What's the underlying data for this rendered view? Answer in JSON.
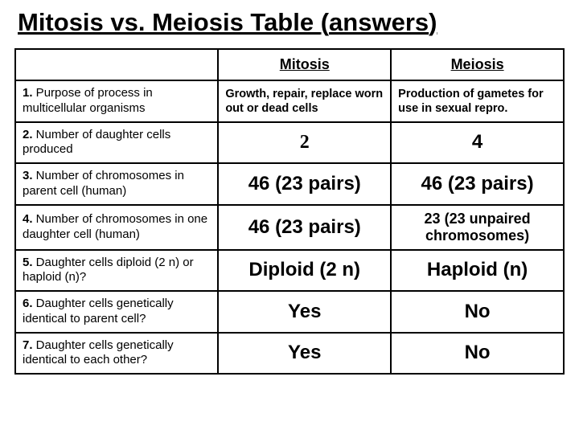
{
  "title": {
    "part1": "Mitosis vs. Meiosis Table ",
    "paren_open": "(",
    "answers": "answers",
    "paren_close": ")"
  },
  "headers": {
    "col1": "",
    "col2": "Mitosis",
    "col3": "Meiosis"
  },
  "rows": [
    {
      "label_bold": "1.",
      "label_rest": " Purpose of process in multicellular organisms",
      "mitosis": "Growth, repair, replace worn out or dead cells",
      "meiosis": "Production of gametes for use in sexual repro.",
      "style": "small"
    },
    {
      "label_bold": "2.",
      "label_rest": " Number of daughter cells produced",
      "mitosis": "2",
      "meiosis": "4",
      "style": "big",
      "mitosis_serif": true
    },
    {
      "label_bold": "3.",
      "label_rest": " Number of chromosomes in parent cell (human)",
      "mitosis": "46 (23 pairs)",
      "meiosis": "46 (23 pairs)",
      "style": "big"
    },
    {
      "label_bold": "4.",
      "label_rest": " Number of chromosomes in one daughter cell (human)",
      "mitosis": "46 (23 pairs)",
      "meiosis": "23 (23 unpaired chromosomes)",
      "style": "big",
      "meiosis_fontsize": "18px"
    },
    {
      "label_bold": "5.",
      "label_rest": " Daughter cells diploid (2 n) or haploid (n)?",
      "mitosis": "Diploid (2 n)",
      "meiosis": "Haploid (n)",
      "style": "big"
    },
    {
      "label_bold": "6.",
      "label_rest": " Daughter cells genetically identical to parent cell?",
      "mitosis": "Yes",
      "meiosis": "No",
      "style": "big"
    },
    {
      "label_bold": "7.",
      "label_rest": " Daughter cells genetically identical to each other?",
      "mitosis": "Yes",
      "meiosis": "No",
      "style": "big"
    }
  ],
  "colors": {
    "background": "#ffffff",
    "text": "#000000",
    "border": "#000000"
  }
}
